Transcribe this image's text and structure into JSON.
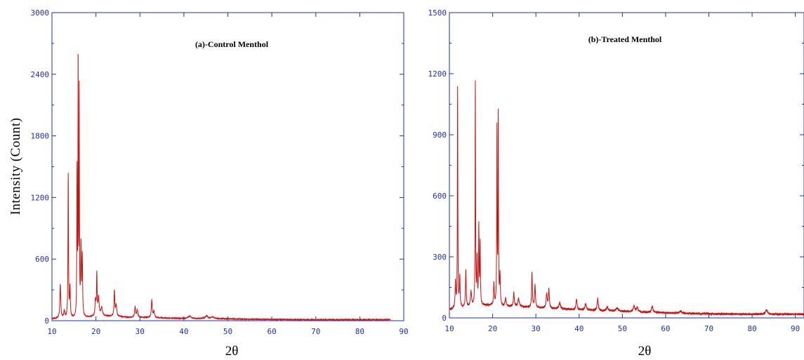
{
  "chart_data": [
    {
      "type": "line",
      "title": "(a)-Control Menthol",
      "xlabel": "2θ",
      "ylabel": "Intensity (Count)",
      "xlim": [
        10,
        90
      ],
      "ylim": [
        0,
        3000
      ],
      "x_ticks": [
        10,
        20,
        30,
        40,
        50,
        60,
        70,
        80,
        90
      ],
      "y_ticks": [
        0,
        600,
        1200,
        1800,
        2400,
        3000
      ],
      "grid": false,
      "line_color": "#cc1111",
      "axis_color": "#1f2fb0",
      "x_end": 87,
      "baseline": [
        [
          10,
          20
        ],
        [
          12,
          20
        ],
        [
          15,
          22
        ],
        [
          18,
          30
        ],
        [
          20,
          40
        ],
        [
          22,
          45
        ],
        [
          25,
          40
        ],
        [
          28,
          32
        ],
        [
          30,
          32
        ],
        [
          33,
          30
        ],
        [
          36,
          25
        ],
        [
          40,
          22
        ],
        [
          45,
          22
        ],
        [
          50,
          18
        ],
        [
          55,
          14
        ],
        [
          60,
          12
        ],
        [
          70,
          10
        ],
        [
          80,
          10
        ],
        [
          87,
          10
        ]
      ],
      "peaks": [
        {
          "x": 11.9,
          "height": 330,
          "width": 0.12
        },
        {
          "x": 12.8,
          "height": 70,
          "width": 0.15
        },
        {
          "x": 13.7,
          "height": 1400,
          "width": 0.07
        },
        {
          "x": 14.1,
          "height": 290,
          "width": 0.09
        },
        {
          "x": 15.7,
          "height": 1400,
          "width": 0.06
        },
        {
          "x": 15.95,
          "height": 2480,
          "width": 0.05
        },
        {
          "x": 16.2,
          "height": 2150,
          "width": 0.05
        },
        {
          "x": 16.6,
          "height": 680,
          "width": 0.1
        },
        {
          "x": 16.9,
          "height": 560,
          "width": 0.08
        },
        {
          "x": 19.9,
          "height": 150,
          "width": 0.12
        },
        {
          "x": 20.2,
          "height": 400,
          "width": 0.08
        },
        {
          "x": 20.6,
          "height": 180,
          "width": 0.15
        },
        {
          "x": 21.3,
          "height": 80,
          "width": 0.2
        },
        {
          "x": 24.2,
          "height": 250,
          "width": 0.1
        },
        {
          "x": 24.6,
          "height": 110,
          "width": 0.15
        },
        {
          "x": 28.9,
          "height": 100,
          "width": 0.12
        },
        {
          "x": 29.4,
          "height": 70,
          "width": 0.15
        },
        {
          "x": 32.7,
          "height": 170,
          "width": 0.12
        },
        {
          "x": 33.2,
          "height": 60,
          "width": 0.15
        },
        {
          "x": 41.3,
          "height": 25,
          "width": 0.3
        },
        {
          "x": 45.2,
          "height": 25,
          "width": 0.3
        },
        {
          "x": 46.5,
          "height": 18,
          "width": 0.3
        }
      ]
    },
    {
      "type": "line",
      "title": "(b)-Treated Menthol",
      "xlabel": "2θ",
      "ylabel": "",
      "xlim": [
        10,
        92
      ],
      "ylim": [
        0,
        1500
      ],
      "x_ticks": [
        10,
        20,
        30,
        40,
        50,
        60,
        70,
        80,
        90
      ],
      "y_ticks": [
        0,
        300,
        600,
        900,
        1200,
        1500
      ],
      "grid": false,
      "line_color": "#cc1111",
      "axis_color": "#1f2fb0",
      "x_end": 92,
      "baseline": [
        [
          10,
          40
        ],
        [
          12,
          45
        ],
        [
          15,
          55
        ],
        [
          18,
          60
        ],
        [
          20,
          60
        ],
        [
          22,
          55
        ],
        [
          25,
          55
        ],
        [
          30,
          50
        ],
        [
          35,
          45
        ],
        [
          40,
          40
        ],
        [
          45,
          35
        ],
        [
          50,
          32
        ],
        [
          55,
          28
        ],
        [
          60,
          25
        ],
        [
          65,
          22
        ],
        [
          70,
          20
        ],
        [
          80,
          18
        ],
        [
          92,
          18
        ]
      ],
      "peaks": [
        {
          "x": 11.4,
          "height": 130,
          "width": 0.1
        },
        {
          "x": 11.9,
          "height": 1080,
          "width": 0.06
        },
        {
          "x": 12.4,
          "height": 150,
          "width": 0.1
        },
        {
          "x": 13.8,
          "height": 180,
          "width": 0.1
        },
        {
          "x": 15.0,
          "height": 70,
          "width": 0.15
        },
        {
          "x": 16.0,
          "height": 1090,
          "width": 0.06
        },
        {
          "x": 16.4,
          "height": 220,
          "width": 0.08
        },
        {
          "x": 16.8,
          "height": 380,
          "width": 0.07
        },
        {
          "x": 17.1,
          "height": 300,
          "width": 0.08
        },
        {
          "x": 20.3,
          "height": 110,
          "width": 0.1
        },
        {
          "x": 21.0,
          "height": 860,
          "width": 0.06
        },
        {
          "x": 21.3,
          "height": 930,
          "width": 0.06
        },
        {
          "x": 21.7,
          "height": 150,
          "width": 0.1
        },
        {
          "x": 23.0,
          "height": 40,
          "width": 0.15
        },
        {
          "x": 24.9,
          "height": 70,
          "width": 0.12
        },
        {
          "x": 26.0,
          "height": 40,
          "width": 0.2
        },
        {
          "x": 29.1,
          "height": 170,
          "width": 0.1
        },
        {
          "x": 29.8,
          "height": 110,
          "width": 0.12
        },
        {
          "x": 32.5,
          "height": 70,
          "width": 0.15
        },
        {
          "x": 33.0,
          "height": 90,
          "width": 0.12
        },
        {
          "x": 35.5,
          "height": 30,
          "width": 0.2
        },
        {
          "x": 39.4,
          "height": 50,
          "width": 0.15
        },
        {
          "x": 41.5,
          "height": 30,
          "width": 0.2
        },
        {
          "x": 44.3,
          "height": 60,
          "width": 0.15
        },
        {
          "x": 46.5,
          "height": 20,
          "width": 0.2
        },
        {
          "x": 48.8,
          "height": 15,
          "width": 0.3
        },
        {
          "x": 52.7,
          "height": 30,
          "width": 0.2
        },
        {
          "x": 53.4,
          "height": 20,
          "width": 0.2
        },
        {
          "x": 56.9,
          "height": 30,
          "width": 0.2
        },
        {
          "x": 63.5,
          "height": 10,
          "width": 0.3
        },
        {
          "x": 83.3,
          "height": 20,
          "width": 0.3
        }
      ]
    }
  ]
}
